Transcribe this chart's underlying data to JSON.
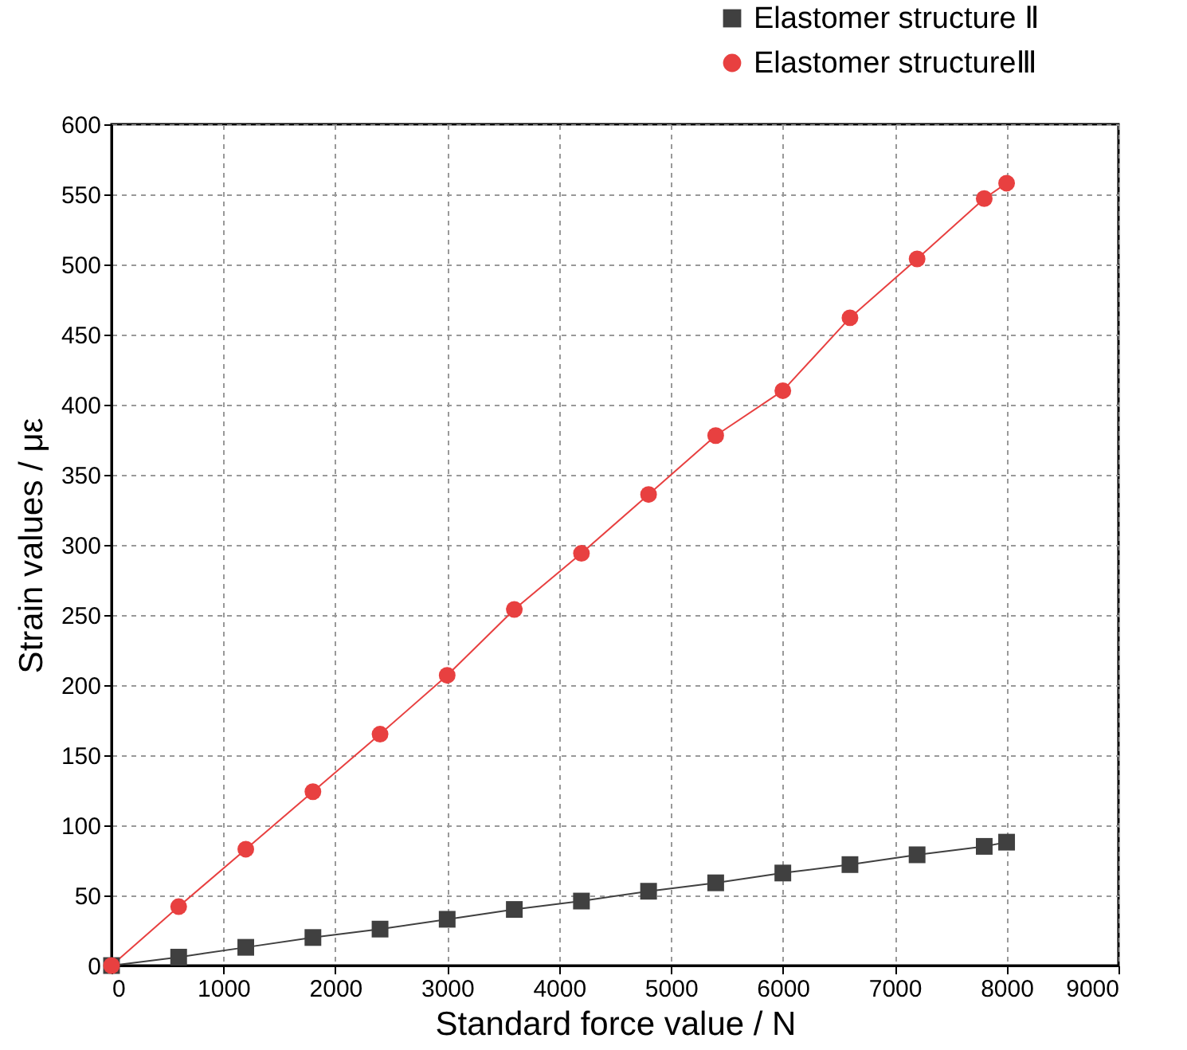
{
  "chart_data": {
    "type": "line",
    "xlabel": "Standard force value / N",
    "ylabel": "Strain values / με",
    "xlim": [
      0,
      9000
    ],
    "ylim": [
      0,
      600
    ],
    "xticks": [
      0,
      1000,
      2000,
      3000,
      4000,
      5000,
      6000,
      7000,
      8000,
      9000
    ],
    "yticks": [
      0,
      50,
      100,
      150,
      200,
      250,
      300,
      350,
      400,
      450,
      500,
      550,
      600
    ],
    "grid": true,
    "legend": "top right",
    "x": [
      0,
      600,
      1200,
      1800,
      2400,
      3000,
      3600,
      4200,
      4800,
      5400,
      6000,
      6600,
      7200,
      7800,
      8000
    ],
    "series": [
      {
        "name": "Elastomer structure Ⅱ",
        "color": "#404040",
        "marker": "square",
        "values": [
          0,
          6,
          13,
          20,
          26,
          33,
          40,
          46,
          53,
          59,
          66,
          72,
          79,
          85,
          88
        ]
      },
      {
        "name": "Elastomer structureⅢ",
        "color": "#e84040",
        "marker": "circle",
        "values": [
          0,
          42,
          83,
          124,
          165,
          207,
          254,
          294,
          336,
          378,
          410,
          462,
          504,
          547,
          558
        ]
      }
    ]
  }
}
